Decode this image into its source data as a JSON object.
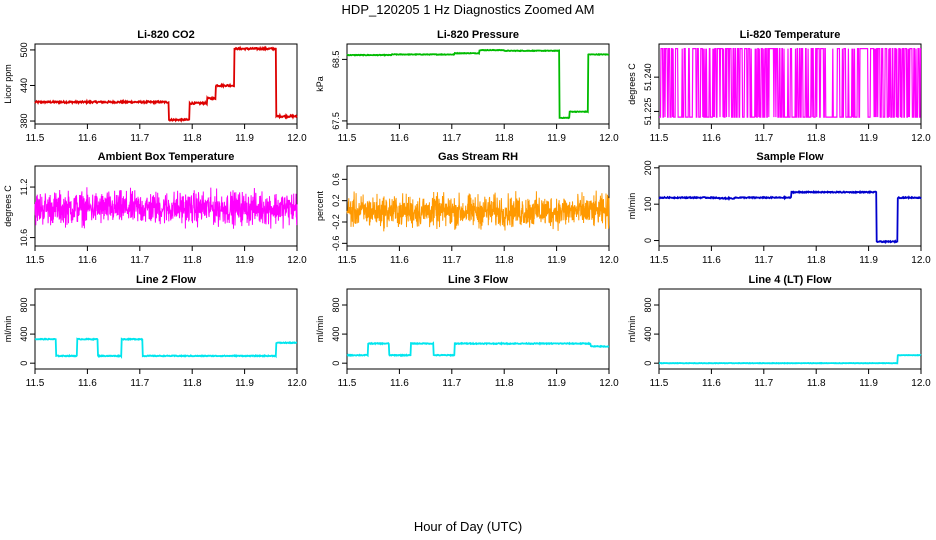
{
  "title": "HDP_120205  1 Hz Diagnostics Zoomed AM",
  "xlabel": "Hour of Day (UTC)",
  "chart_data": [
    {
      "type": "line",
      "title": "Li-820 CO2",
      "ylabel": "Licor ppm",
      "color": "#dd0000",
      "xlim": [
        11.5,
        12.0
      ],
      "ylim": [
        375,
        510
      ],
      "yticks": [
        380,
        440,
        500
      ],
      "ytick_labels": [
        "380",
        "440",
        "500"
      ],
      "noise": 1.5,
      "steps": [
        [
          11.5,
          412
        ],
        [
          11.755,
          382
        ],
        [
          11.795,
          410
        ],
        [
          11.828,
          418
        ],
        [
          11.845,
          440
        ],
        [
          11.88,
          502
        ],
        [
          11.96,
          388
        ],
        [
          12.0,
          388
        ]
      ]
    },
    {
      "type": "line",
      "title": "Li-820 Pressure",
      "ylabel": "kPa",
      "color": "#00bb00",
      "xlim": [
        11.5,
        12.0
      ],
      "ylim": [
        67.45,
        68.75
      ],
      "yticks": [
        67.5,
        68.5
      ],
      "ytick_labels": [
        "67.5",
        "68.5"
      ],
      "noise": 0.005,
      "steps": [
        [
          11.5,
          68.57
        ],
        [
          11.585,
          68.58
        ],
        [
          11.705,
          68.6
        ],
        [
          11.752,
          68.65
        ],
        [
          11.8,
          68.64
        ],
        [
          11.905,
          67.55
        ],
        [
          11.925,
          67.65
        ],
        [
          11.96,
          68.58
        ],
        [
          12.0,
          68.58
        ]
      ]
    },
    {
      "type": "line",
      "title": "Li-820 Temperature",
      "ylabel": "degrees C",
      "color": "#ff00ff",
      "xlim": [
        11.5,
        12.0
      ],
      "ylim": [
        51.2195,
        51.2545
      ],
      "yticks": [
        51.225,
        51.24
      ],
      "ytick_labels": [
        "51.225",
        "51.240"
      ],
      "pattern": "binary",
      "levels": [
        51.2225,
        51.2525
      ]
    },
    {
      "type": "line",
      "title": "Ambient Box Temperature",
      "ylabel": "degrees C",
      "color": "#ff00ff",
      "xlim": [
        11.5,
        12.0
      ],
      "ylim": [
        10.5,
        11.45
      ],
      "yticks": [
        10.6,
        11.2
      ],
      "ytick_labels": [
        "10.6",
        "11.2"
      ],
      "pattern": "noisy",
      "center": 10.95,
      "amplitude": 0.18
    },
    {
      "type": "line",
      "title": "Gas Stream RH",
      "ylabel": "percent",
      "color": "#ff9900",
      "xlim": [
        11.5,
        12.0
      ],
      "ylim": [
        -0.65,
        0.85
      ],
      "yticks": [
        -0.6,
        -0.2,
        0.2,
        0.6
      ],
      "ytick_labels": [
        "-0.6",
        "-0.2",
        "0.2",
        "0.6"
      ],
      "pattern": "noisy",
      "center": 0.0,
      "amplitude": 0.28
    },
    {
      "type": "line",
      "title": "Sample Flow",
      "ylabel": "ml/min",
      "color": "#0000cc",
      "xlim": [
        11.5,
        12.0
      ],
      "ylim": [
        -15,
        205
      ],
      "yticks": [
        0,
        100,
        200
      ],
      "ytick_labels": [
        "0",
        "100",
        "200"
      ],
      "noise": 1.5,
      "steps": [
        [
          11.5,
          118
        ],
        [
          11.61,
          116
        ],
        [
          11.645,
          118
        ],
        [
          11.752,
          133
        ],
        [
          11.915,
          -3
        ],
        [
          11.955,
          118
        ],
        [
          12.0,
          118
        ]
      ]
    },
    {
      "type": "line",
      "title": "Line 2 Flow",
      "ylabel": "ml/min",
      "color": "#00e5ee",
      "xlim": [
        11.5,
        12.0
      ],
      "ylim": [
        -80,
        1020
      ],
      "yticks": [
        0,
        400,
        800
      ],
      "ytick_labels": [
        "0",
        "400",
        "800"
      ],
      "noise": 6,
      "steps": [
        [
          11.5,
          330
        ],
        [
          11.54,
          100
        ],
        [
          11.58,
          330
        ],
        [
          11.62,
          100
        ],
        [
          11.665,
          330
        ],
        [
          11.705,
          100
        ],
        [
          11.96,
          280
        ],
        [
          12.0,
          280
        ]
      ]
    },
    {
      "type": "line",
      "title": "Line 3 Flow",
      "ylabel": "ml/min",
      "color": "#00e5ee",
      "xlim": [
        11.5,
        12.0
      ],
      "ylim": [
        -80,
        1020
      ],
      "yticks": [
        0,
        400,
        800
      ],
      "ytick_labels": [
        "0",
        "400",
        "800"
      ],
      "noise": 6,
      "steps": [
        [
          11.5,
          110
        ],
        [
          11.54,
          270
        ],
        [
          11.58,
          110
        ],
        [
          11.622,
          270
        ],
        [
          11.665,
          110
        ],
        [
          11.705,
          270
        ],
        [
          11.965,
          230
        ],
        [
          12.0,
          230
        ]
      ]
    },
    {
      "type": "line",
      "title": "Line 4 (LT) Flow",
      "ylabel": "ml/min",
      "color": "#00e5ee",
      "xlim": [
        11.5,
        12.0
      ],
      "ylim": [
        -80,
        1020
      ],
      "yticks": [
        0,
        400,
        800
      ],
      "ytick_labels": [
        "0",
        "400",
        "800"
      ],
      "noise": 3,
      "steps": [
        [
          11.5,
          0
        ],
        [
          11.955,
          110
        ],
        [
          12.0,
          110
        ]
      ]
    }
  ],
  "xticks": [
    11.5,
    11.6,
    11.7,
    11.8,
    11.9,
    12.0
  ],
  "xtick_labels": [
    "11.5",
    "11.6",
    "11.7",
    "11.8",
    "11.9",
    "12.0"
  ]
}
